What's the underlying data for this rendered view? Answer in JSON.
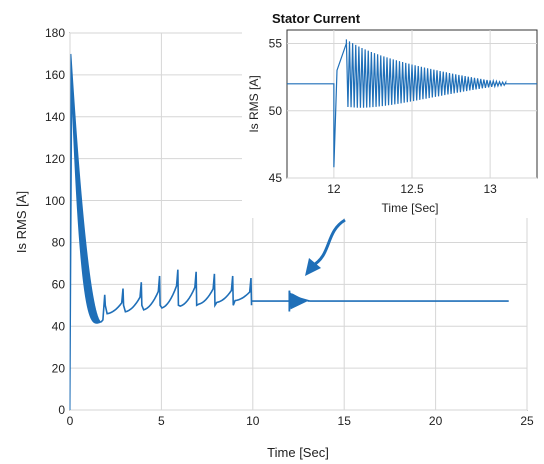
{
  "chart_data": [
    {
      "id": "main",
      "type": "line",
      "title": "",
      "xlabel": "Time [Sec]",
      "ylabel": "Is RMS [A]",
      "xlim": [
        0,
        25
      ],
      "ylim": [
        0,
        180
      ],
      "xticks": [
        0,
        5,
        10,
        15,
        20,
        25
      ],
      "yticks": [
        0,
        20,
        40,
        60,
        80,
        100,
        120,
        140,
        160,
        180
      ],
      "grid": true,
      "series": [
        {
          "color": "#1f6fb8",
          "description_points": {
            "start_peak": [
              0.05,
              170
            ],
            "decay_end": [
              1.7,
              42
            ],
            "oscillation_peaks": [
              [
                1.9,
                55
              ],
              [
                2.9,
                58
              ],
              [
                3.9,
                61
              ],
              [
                4.9,
                64
              ],
              [
                5.9,
                67
              ],
              [
                6.9,
                66
              ],
              [
                7.9,
                65
              ],
              [
                8.9,
                64
              ],
              [
                9.9,
                63
              ]
            ],
            "steady_state_before_step": 52,
            "step_time": 12,
            "steady_state_after": 52,
            "end_time": 24
          }
        }
      ]
    },
    {
      "id": "inset",
      "type": "line",
      "title": "Stator Current",
      "xlabel": "Time [Sec]",
      "ylabel": "Is RMS [A]",
      "xlim": [
        11.7,
        13.3
      ],
      "ylim": [
        45,
        56
      ],
      "xticks": [
        12,
        12.5,
        13
      ],
      "yticks": [
        45,
        50,
        55
      ],
      "grid": true,
      "series": [
        {
          "color": "#1f6fb8",
          "description_points": {
            "baseline": 52,
            "step_time": 12,
            "dip": 45.8,
            "first_peak": [
              12.08,
              55
            ],
            "settle_value": 52,
            "settle_time": 13.1
          }
        }
      ]
    }
  ],
  "annotation": {
    "arrow_color": "#1f6fb8"
  }
}
